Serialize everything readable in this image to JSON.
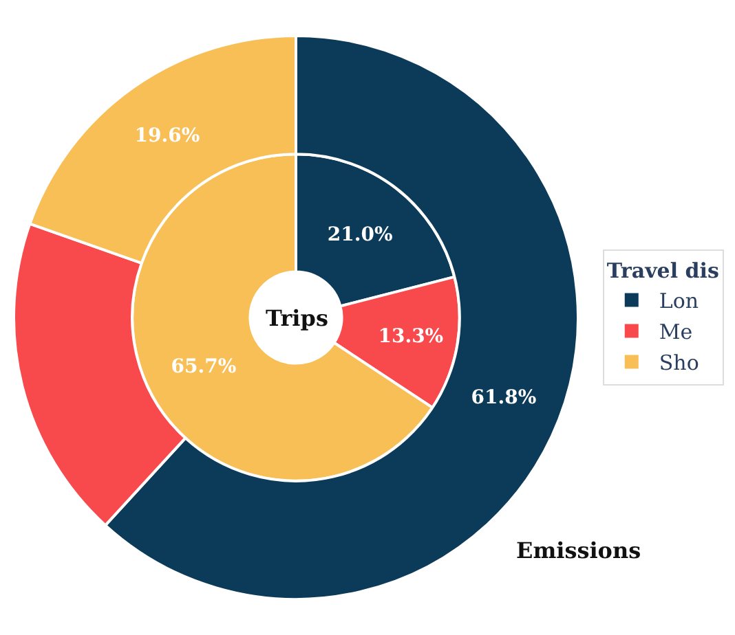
{
  "chart_data": {
    "type": "donut",
    "categories": [
      "Lon",
      "Me",
      "Sho"
    ],
    "colors": [
      "#0c3b5a",
      "#f84a4c",
      "#f8bf57"
    ],
    "legend": "right",
    "legend_title": "Travel dis",
    "series": [
      {
        "name": "Trips",
        "values": [
          21.0,
          13.3,
          65.7
        ],
        "value_labels": [
          "21.0%",
          "13.3%",
          "65.7%"
        ]
      },
      {
        "name": "Emissions",
        "values": [
          61.8,
          18.6,
          19.6
        ],
        "value_labels": [
          "61.8%",
          null,
          "19.6%"
        ]
      }
    ]
  }
}
